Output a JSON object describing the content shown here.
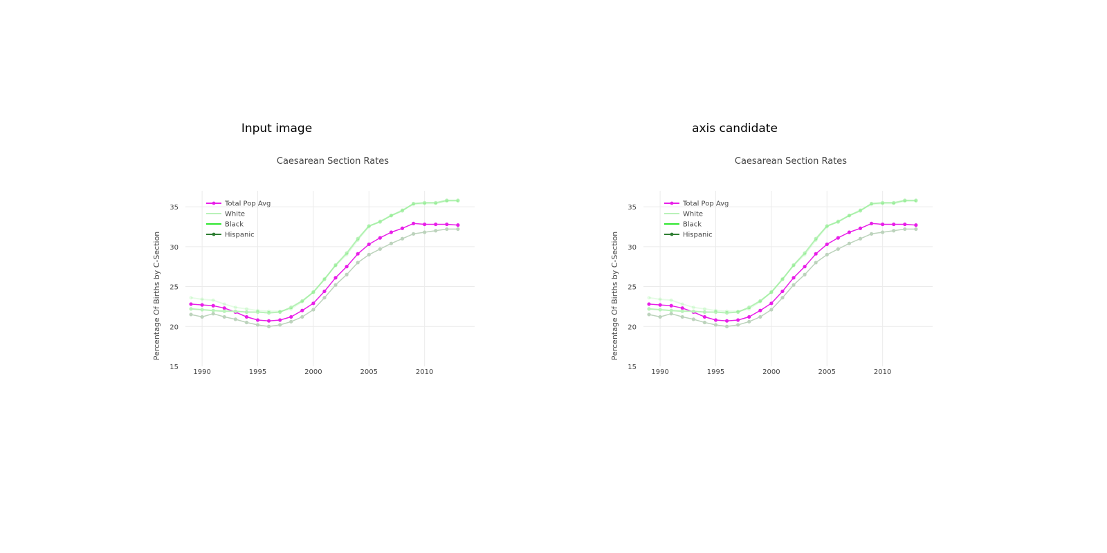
{
  "panels": [
    {
      "title": "Input image"
    },
    {
      "title": "axis candidate"
    }
  ],
  "chart_data": {
    "type": "line",
    "title": "Caesarean Section Rates",
    "xlabel": "",
    "ylabel": "Percentage Of Births by C-Section",
    "xlim": [
      1988.5,
      2014.5
    ],
    "ylim": [
      15,
      37
    ],
    "xticks": [
      1990,
      1995,
      2000,
      2005,
      2010
    ],
    "xtick_labels": [
      "1990",
      "1995",
      "2000",
      "2005",
      "2010"
    ],
    "yticks": [
      15,
      20,
      25,
      30,
      35
    ],
    "ytick_labels": [
      "15",
      "20",
      "25",
      "30",
      "35"
    ],
    "grid": true,
    "legend_position": "top-left",
    "x": [
      1989,
      1990,
      1991,
      1992,
      1993,
      1994,
      1995,
      1996,
      1997,
      1998,
      1999,
      2000,
      2001,
      2002,
      2003,
      2004,
      2005,
      2006,
      2007,
      2008,
      2009,
      2010,
      2011,
      2012,
      2013
    ],
    "series": [
      {
        "name": "Total Pop Avg",
        "color": "#e81ee8",
        "width": 1.5,
        "opacity": 1.0,
        "marker": true,
        "values": [
          22.8,
          22.7,
          22.6,
          22.3,
          21.8,
          21.2,
          20.8,
          20.7,
          20.8,
          21.2,
          22.0,
          22.9,
          24.4,
          26.1,
          27.5,
          29.1,
          30.3,
          31.1,
          31.8,
          32.3,
          32.9,
          32.8,
          32.8,
          32.8,
          32.7
        ]
      },
      {
        "name": "White",
        "color": "#b9f2b9",
        "width": 2.0,
        "opacity": 1.0,
        "marker": true,
        "values": [
          22.2,
          22.1,
          22.0,
          21.9,
          21.9,
          21.8,
          21.8,
          21.7,
          21.8,
          22.4,
          23.2,
          24.3,
          25.9,
          27.7,
          29.2,
          31.0,
          32.6,
          33.1,
          33.9,
          34.5,
          35.4,
          35.5,
          35.5,
          35.8,
          35.8
        ]
      },
      {
        "name": "Black",
        "color": "#2ee62e",
        "width": 2.0,
        "opacity": 0.12,
        "marker": true,
        "values": [
          23.6,
          23.4,
          23.3,
          22.8,
          22.4,
          22.2,
          22.0,
          21.9,
          21.9,
          22.2,
          23.1,
          24.3,
          26.0,
          27.6,
          29.0,
          30.8,
          32.5,
          33.2,
          33.9,
          34.6,
          35.3,
          35.4,
          35.4,
          35.7,
          35.7
        ]
      },
      {
        "name": "Hispanic",
        "color": "#2e7d32",
        "width": 1.5,
        "opacity": 1.0,
        "marker": true,
        "plot_color": "#bcd3bc",
        "values": [
          21.5,
          21.2,
          21.6,
          21.2,
          20.9,
          20.5,
          20.2,
          20.0,
          20.2,
          20.6,
          21.2,
          22.1,
          23.6,
          25.2,
          26.5,
          28.0,
          29.0,
          29.7,
          30.4,
          31.0,
          31.6,
          31.8,
          32.0,
          32.2,
          32.2
        ]
      }
    ]
  }
}
